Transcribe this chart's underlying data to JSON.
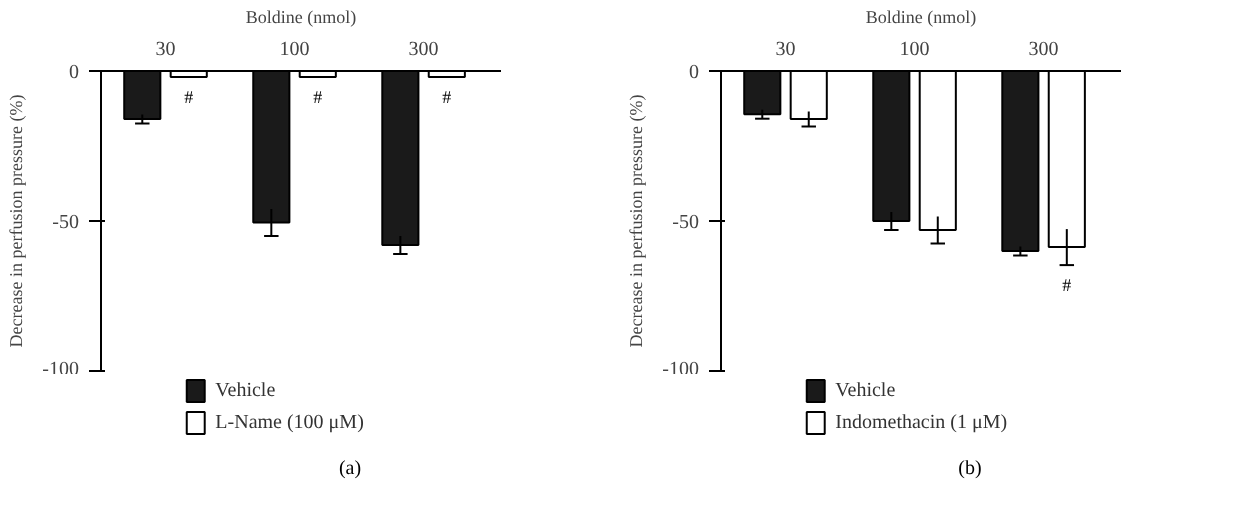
{
  "chart_data": [
    {
      "type": "bar",
      "xlabel": "Boldine (nmol)",
      "ylabel": "Decrease in perfusion pressure (%)",
      "categories": [
        "30",
        "100",
        "300"
      ],
      "series": [
        {
          "name": "Vehicle",
          "color": "#1a1a1a",
          "values": [
            -16,
            -50.5,
            -58
          ],
          "errors": [
            1.5,
            4.5,
            3
          ]
        },
        {
          "name": "L-Name (100 μM)",
          "color": "#ffffff",
          "values": [
            -2,
            -2,
            -2
          ],
          "errors": [
            null,
            null,
            null
          ]
        }
      ],
      "ylim": [
        -100,
        0
      ],
      "yticks": [
        0,
        -50,
        -100
      ],
      "grid": false,
      "legend": "bottom",
      "annotations": [
        {
          "text": "#",
          "x": "30",
          "y": -2
        },
        {
          "text": "#",
          "x": "100",
          "y": -2
        },
        {
          "text": "#",
          "x": "300",
          "y": -2
        },
        "(a)"
      ]
    },
    {
      "type": "bar",
      "xlabel": "Boldine (nmol)",
      "ylabel": "Decrease in perfusion pressure (%)",
      "categories": [
        "30",
        "100",
        "300"
      ],
      "series": [
        {
          "name": "Vehicle",
          "color": "#1a1a1a",
          "values": [
            -14.4,
            -50,
            -60
          ],
          "errors": [
            1.5,
            3,
            1.5
          ]
        },
        {
          "name": "Indomethacin (1 μM)",
          "color": "#ffffff",
          "values": [
            -16,
            -53,
            -58.7
          ],
          "errors": [
            2.5,
            4.5,
            6
          ]
        }
      ],
      "ylim": [
        -100,
        0
      ],
      "yticks": [
        0,
        -50,
        -100
      ],
      "grid": false,
      "legend": "bottom",
      "annotations": [
        {
          "text": "#",
          "x": "300",
          "y": -58.7
        },
        "(b)"
      ]
    }
  ]
}
